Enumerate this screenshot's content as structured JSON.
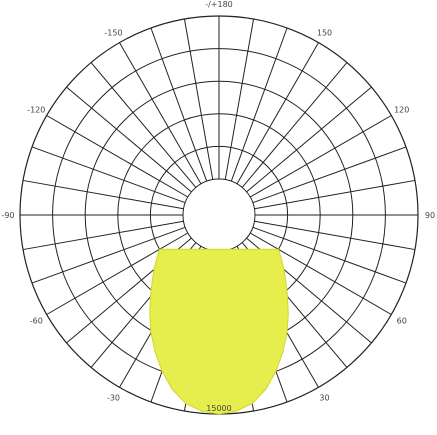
{
  "chart_data": {
    "type": "polar",
    "title": "",
    "angle_labels": [
      {
        "angle": 180,
        "text": "-/+180"
      },
      {
        "angle": -150,
        "text": "-150"
      },
      {
        "angle": 150,
        "text": "150"
      },
      {
        "angle": -120,
        "text": "-120"
      },
      {
        "angle": 120,
        "text": "120"
      },
      {
        "angle": -90,
        "text": "-90"
      },
      {
        "angle": 90,
        "text": "90"
      },
      {
        "angle": -60,
        "text": "-60"
      },
      {
        "angle": 60,
        "text": "60"
      },
      {
        "angle": -30,
        "text": "-30"
      },
      {
        "angle": 30,
        "text": "30"
      }
    ],
    "radial_axis": {
      "max": 15000,
      "ring_count": 5,
      "label": "15000",
      "label_angle": 0
    },
    "spoke_step_degrees": 10,
    "series": [
      {
        "fill": "#e6ee4e",
        "outline": "#cfd62f",
        "angles": [
          0,
          5,
          10,
          15,
          20,
          25,
          30,
          35,
          40,
          45,
          50,
          55,
          60
        ],
        "values": [
          15000,
          14800,
          14300,
          13300,
          12000,
          10600,
          9200,
          7800,
          6500,
          5400,
          4500,
          3700,
          3000
        ]
      }
    ]
  }
}
